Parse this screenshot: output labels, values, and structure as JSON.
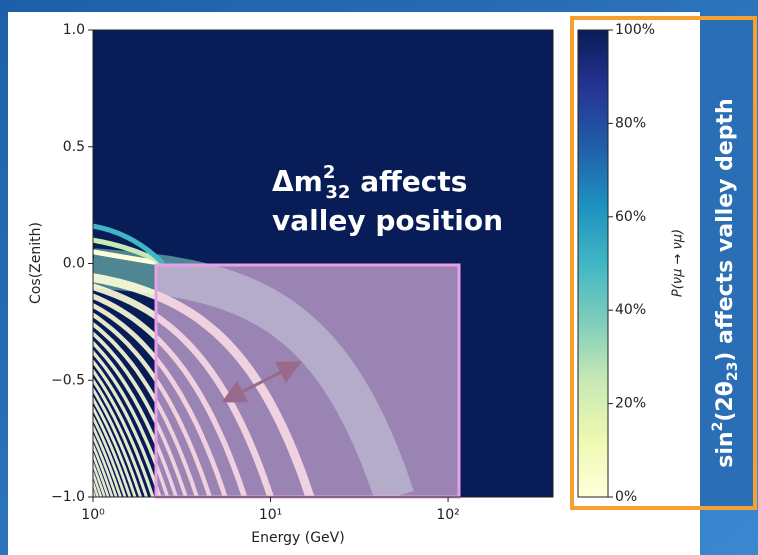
{
  "chart_data": {
    "type": "heatmap",
    "xlabel": "Energy (GeV)",
    "ylabel": "Cos(Zenith)",
    "xscale": "log",
    "xlim": [
      1,
      390
    ],
    "ylim": [
      -1,
      1
    ],
    "xticks": [
      {
        "value": 1,
        "label": "10⁰"
      },
      {
        "value": 10,
        "label": "10¹"
      },
      {
        "value": 100,
        "label": "10²"
      }
    ],
    "yticks": [
      {
        "value": -1,
        "label": "−1.0"
      },
      {
        "value": -0.5,
        "label": "−0.5"
      },
      {
        "value": 0,
        "label": "0.0"
      },
      {
        "value": 0.5,
        "label": "0.5"
      },
      {
        "value": 1,
        "label": "1.0"
      }
    ],
    "colorbar": {
      "label": "P(νμ → νμ)",
      "lim": [
        0,
        100
      ],
      "ticks": [
        {
          "value": 0,
          "label": "0%"
        },
        {
          "value": 20,
          "label": "20%"
        },
        {
          "value": 40,
          "label": "40%"
        },
        {
          "value": 60,
          "label": "60%"
        },
        {
          "value": 80,
          "label": "80%"
        },
        {
          "value": 100,
          "label": "100%"
        }
      ],
      "colors": [
        "#ffffd9",
        "#edf8b1",
        "#c7e9b4",
        "#7fcdbb",
        "#41b6c4",
        "#1d91c0",
        "#225ea8",
        "#253494",
        "#081d58"
      ]
    },
    "annotations": {
      "mass": {
        "base": "Δm",
        "sup": "2",
        "sub": "32",
        "rest": " affects",
        "line2": "valley position"
      },
      "mixing": {
        "base": "sin",
        "sup": "2",
        "mid": "(2θ",
        "sub": "23",
        "rest": ") affects valley depth"
      }
    }
  }
}
